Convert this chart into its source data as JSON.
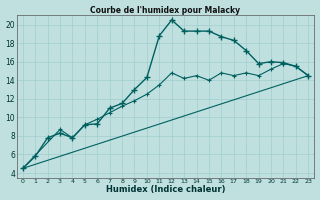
{
  "title": "Courbe de l'humidex pour Malacky",
  "xlabel": "Humidex (Indice chaleur)",
  "bg_color": "#c0e0e0",
  "grid_color": "#a0cccc",
  "line_color": "#006060",
  "xlim": [
    -0.5,
    23.5
  ],
  "ylim": [
    3.5,
    21
  ],
  "xticks": [
    0,
    1,
    2,
    3,
    4,
    5,
    6,
    7,
    8,
    9,
    10,
    11,
    12,
    13,
    14,
    15,
    16,
    17,
    18,
    19,
    20,
    21,
    22,
    23
  ],
  "yticks": [
    4,
    6,
    8,
    10,
    12,
    14,
    16,
    18,
    20
  ],
  "series1_x": [
    0,
    1,
    2,
    3,
    4,
    5,
    6,
    7,
    8,
    9,
    10,
    11,
    12,
    13,
    14,
    15,
    16,
    17,
    18,
    19,
    20,
    21,
    22,
    23
  ],
  "series1_y": [
    4.5,
    5.8,
    7.8,
    8.3,
    7.8,
    9.2,
    9.3,
    11.0,
    11.5,
    13.0,
    14.3,
    18.8,
    20.5,
    19.3,
    19.3,
    19.3,
    18.7,
    18.3,
    17.2,
    15.8,
    16.0,
    15.9,
    15.5,
    14.5
  ],
  "series2_x": [
    0,
    3,
    4,
    5,
    6,
    7,
    8,
    9,
    10,
    11,
    12,
    13,
    14,
    15,
    16,
    17,
    18,
    19,
    20,
    21,
    22,
    23
  ],
  "series2_y": [
    4.5,
    8.7,
    7.8,
    9.2,
    9.8,
    10.5,
    11.2,
    11.8,
    12.5,
    13.5,
    14.8,
    14.2,
    14.5,
    14.0,
    14.8,
    14.5,
    14.8,
    14.5,
    15.2,
    15.8,
    15.5,
    14.5
  ],
  "series3_x": [
    0,
    23
  ],
  "series3_y": [
    4.5,
    14.5
  ]
}
